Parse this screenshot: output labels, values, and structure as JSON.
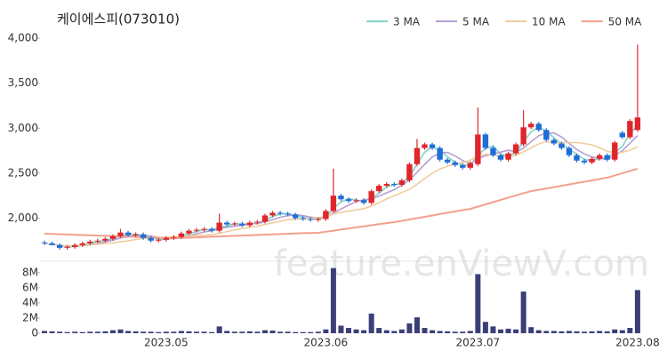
{
  "chart_data": {
    "type": "candlestick",
    "title": "케이에스피(073010)",
    "watermark": "feature.enViewV.com",
    "up_color": "#e0262b",
    "down_color": "#1f6ed8",
    "categories": [
      null,
      null,
      null,
      null,
      null,
      null,
      null,
      null,
      null,
      null,
      null,
      null,
      null,
      null,
      null,
      null,
      "2023.05",
      null,
      null,
      null,
      null,
      null,
      null,
      null,
      null,
      null,
      null,
      null,
      null,
      null,
      null,
      null,
      null,
      null,
      null,
      null,
      null,
      "2023.06",
      null,
      null,
      null,
      null,
      null,
      null,
      null,
      null,
      null,
      null,
      null,
      null,
      null,
      null,
      null,
      null,
      null,
      null,
      null,
      "2023.07",
      null,
      null,
      null,
      null,
      null,
      null,
      null,
      null,
      null,
      null,
      null,
      null,
      null,
      null,
      null,
      null,
      null,
      null,
      null,
      null,
      "2023.08"
    ],
    "open": [
      1730,
      1720,
      1700,
      1670,
      1680,
      1700,
      1720,
      1740,
      1750,
      1770,
      1800,
      1840,
      1810,
      1820,
      1780,
      1750,
      1760,
      1780,
      1790,
      1830,
      1860,
      1870,
      1880,
      1860,
      1950,
      1930,
      1940,
      1920,
      1950,
      1960,
      2030,
      2060,
      2050,
      2040,
      2000,
      1990,
      1980,
      1990,
      2080,
      2250,
      2210,
      2190,
      2200,
      2170,
      2300,
      2360,
      2380,
      2370,
      2420,
      2600,
      2780,
      2820,
      2780,
      2650,
      2620,
      2590,
      2560,
      2600,
      2930,
      2780,
      2700,
      2650,
      2720,
      2820,
      3010,
      3050,
      2980,
      2870,
      2830,
      2780,
      2700,
      2640,
      2620,
      2660,
      2700,
      2650,
      2950,
      2900,
      2980
    ],
    "high": [
      1750,
      1740,
      1720,
      1700,
      1720,
      1740,
      1760,
      1770,
      1790,
      1820,
      1880,
      1860,
      1840,
      1840,
      1800,
      1780,
      1800,
      1810,
      1850,
      1880,
      1890,
      1900,
      1900,
      2050,
      1970,
      1960,
      1960,
      1970,
      1980,
      2050,
      2080,
      2080,
      2070,
      2060,
      2020,
      2010,
      2010,
      2100,
      2550,
      2270,
      2230,
      2220,
      2220,
      2320,
      2380,
      2400,
      2400,
      2440,
      2620,
      2880,
      2840,
      2840,
      2800,
      2670,
      2640,
      2610,
      2630,
      3230,
      2950,
      2800,
      2720,
      2740,
      2840,
      3200,
      3070,
      3070,
      3000,
      2890,
      2850,
      2800,
      2720,
      2660,
      2680,
      2720,
      2720,
      2860,
      2970,
      3100,
      3930
    ],
    "low": [
      1700,
      1700,
      1650,
      1650,
      1660,
      1680,
      1700,
      1720,
      1730,
      1750,
      1780,
      1790,
      1790,
      1760,
      1730,
      1730,
      1740,
      1760,
      1770,
      1810,
      1840,
      1850,
      1840,
      1840,
      1910,
      1910,
      1900,
      1900,
      1930,
      1940,
      2010,
      2030,
      2020,
      1980,
      1970,
      1960,
      1960,
      1970,
      2060,
      2190,
      2170,
      2170,
      2150,
      2150,
      2280,
      2340,
      2350,
      2350,
      2400,
      2580,
      2760,
      2760,
      2630,
      2600,
      2570,
      2540,
      2540,
      2580,
      2760,
      2680,
      2630,
      2630,
      2700,
      2800,
      2990,
      2960,
      2850,
      2810,
      2760,
      2680,
      2620,
      2600,
      2600,
      2640,
      2630,
      2630,
      2880,
      2880,
      2960
    ],
    "close": [
      1720,
      1700,
      1670,
      1680,
      1700,
      1720,
      1740,
      1750,
      1770,
      1800,
      1840,
      1810,
      1820,
      1780,
      1750,
      1760,
      1780,
      1790,
      1830,
      1860,
      1870,
      1880,
      1860,
      1950,
      1930,
      1940,
      1920,
      1950,
      1960,
      2030,
      2060,
      2050,
      2040,
      2000,
      1990,
      1980,
      1990,
      2080,
      2250,
      2210,
      2190,
      2200,
      2170,
      2300,
      2360,
      2380,
      2370,
      2420,
      2600,
      2780,
      2820,
      2780,
      2650,
      2620,
      2590,
      2560,
      2610,
      2930,
      2780,
      2700,
      2650,
      2720,
      2820,
      3010,
      3050,
      2980,
      2870,
      2830,
      2780,
      2700,
      2640,
      2620,
      2660,
      2700,
      2650,
      2840,
      2900,
      3080,
      3120
    ],
    "ylim": [
      1570,
      4080
    ],
    "yticks": [
      {
        "value": 2000,
        "label": "2,000"
      },
      {
        "value": 2500,
        "label": "2,500"
      },
      {
        "value": 3000,
        "label": "3,000"
      },
      {
        "value": 3500,
        "label": "3,500"
      },
      {
        "value": 4000,
        "label": "4,000"
      }
    ],
    "series": [
      {
        "name": "3 MA",
        "color": "#7fd4c6",
        "values": [
          1720,
          1710,
          1697,
          1683,
          1683,
          1700,
          1720,
          1737,
          1753,
          1773,
          1803,
          1817,
          1823,
          1803,
          1783,
          1763,
          1763,
          1777,
          1800,
          1827,
          1853,
          1870,
          1870,
          1897,
          1913,
          1940,
          1930,
          1937,
          1943,
          1980,
          2017,
          2047,
          2050,
          2030,
          2010,
          1990,
          1987,
          2017,
          2107,
          2180,
          2217,
          2200,
          2187,
          2223,
          2277,
          2347,
          2370,
          2390,
          2463,
          2600,
          2733,
          2793,
          2750,
          2683,
          2620,
          2590,
          2587,
          2700,
          2773,
          2803,
          2710,
          2690,
          2730,
          2850,
          2960,
          3013,
          2967,
          2893,
          2827,
          2770,
          2707,
          2653,
          2640,
          2660,
          2670,
          2730,
          2797,
          2940,
          3033
        ]
      },
      {
        "name": "5 MA",
        "color": "#b59fd2",
        "values": [
          1720,
          1710,
          1697,
          1693,
          1694,
          1694,
          1702,
          1718,
          1736,
          1756,
          1780,
          1794,
          1808,
          1810,
          1800,
          1784,
          1778,
          1772,
          1782,
          1804,
          1826,
          1846,
          1860,
          1884,
          1898,
          1912,
          1920,
          1938,
          1940,
          1960,
          1984,
          2010,
          2028,
          2038,
          2028,
          2012,
          2000,
          2008,
          2058,
          2102,
          2144,
          2186,
          2204,
          2214,
          2244,
          2282,
          2316,
          2366,
          2426,
          2510,
          2598,
          2680,
          2726,
          2730,
          2692,
          2640,
          2606,
          2662,
          2694,
          2716,
          2734,
          2756,
          2734,
          2780,
          2850,
          2916,
          2946,
          2948,
          2902,
          2832,
          2764,
          2714,
          2680,
          2664,
          2654,
          2694,
          2750,
          2834,
          2918
        ]
      },
      {
        "name": "10 MA",
        "color": "#f0cc9c",
        "values": [
          1720,
          1710,
          1697,
          1693,
          1694,
          1698,
          1704,
          1710,
          1717,
          1725,
          1737,
          1748,
          1763,
          1773,
          1778,
          1782,
          1786,
          1790,
          1796,
          1802,
          1805,
          1812,
          1816,
          1833,
          1851,
          1869,
          1883,
          1899,
          1912,
          1929,
          1948,
          1965,
          1983,
          1988,
          1994,
          1998,
          2005,
          2018,
          2047,
          2065,
          2078,
          2093,
          2106,
          2136,
          2173,
          2213,
          2251,
          2285,
          2320,
          2377,
          2440,
          2498,
          2546,
          2578,
          2601,
          2619,
          2643,
          2694,
          2712,
          2704,
          2687,
          2681,
          2698,
          2737,
          2783,
          2825,
          2851,
          2841,
          2841,
          2841,
          2840,
          2830,
          2814,
          2783,
          2743,
          2729,
          2732,
          2757,
          2791
        ]
      },
      {
        "name": "50 MA",
        "color": "#f3a08e",
        "values": [
          1827,
          1824,
          1821,
          1818,
          1815,
          1812,
          1809,
          1806,
          1803,
          1800,
          1797,
          1794,
          1791,
          1788,
          1785,
          1782,
          1779,
          1777,
          1780,
          1783,
          1786,
          1790,
          1793,
          1796,
          1800,
          1803,
          1806,
          1810,
          1813,
          1816,
          1820,
          1823,
          1826,
          1830,
          1833,
          1835,
          1837,
          1849,
          1861,
          1873,
          1885,
          1897,
          1909,
          1921,
          1933,
          1945,
          1955,
          1970,
          1985,
          2000,
          2015,
          2030,
          2045,
          2060,
          2075,
          2090,
          2103,
          2128,
          2153,
          2178,
          2203,
          2228,
          2253,
          2278,
          2300,
          2315,
          2330,
          2345,
          2360,
          2375,
          2390,
          2405,
          2420,
          2435,
          2450,
          2475,
          2500,
          2525,
          2550
        ]
      }
    ],
    "volume": {
      "color": "#3b3f78",
      "values": [
        300000,
        250000,
        200000,
        150000,
        200000,
        150000,
        200000,
        200000,
        250000,
        400000,
        500000,
        300000,
        250000,
        200000,
        200000,
        150000,
        200000,
        200000,
        300000,
        250000,
        200000,
        200000,
        150000,
        900000,
        300000,
        200000,
        200000,
        250000,
        200000,
        400000,
        350000,
        200000,
        200000,
        150000,
        150000,
        150000,
        200000,
        500000,
        8600000,
        1000000,
        700000,
        500000,
        400000,
        2600000,
        700000,
        400000,
        300000,
        500000,
        1300000,
        2100000,
        700000,
        400000,
        300000,
        250000,
        200000,
        200000,
        300000,
        7800000,
        1500000,
        900000,
        500000,
        600000,
        500000,
        5500000,
        800000,
        400000,
        300000,
        300000,
        250000,
        300000,
        250000,
        200000,
        250000,
        300000,
        250000,
        500000,
        400000,
        700000,
        5700000
      ],
      "ylim": [
        0,
        8800000
      ],
      "yticks": [
        0,
        {
          "value": 2000000,
          "label": "2M"
        },
        {
          "value": 4000000,
          "label": "4M"
        },
        {
          "value": 6000000,
          "label": "6M"
        },
        {
          "value": 8000000,
          "label": "8M"
        }
      ]
    }
  }
}
